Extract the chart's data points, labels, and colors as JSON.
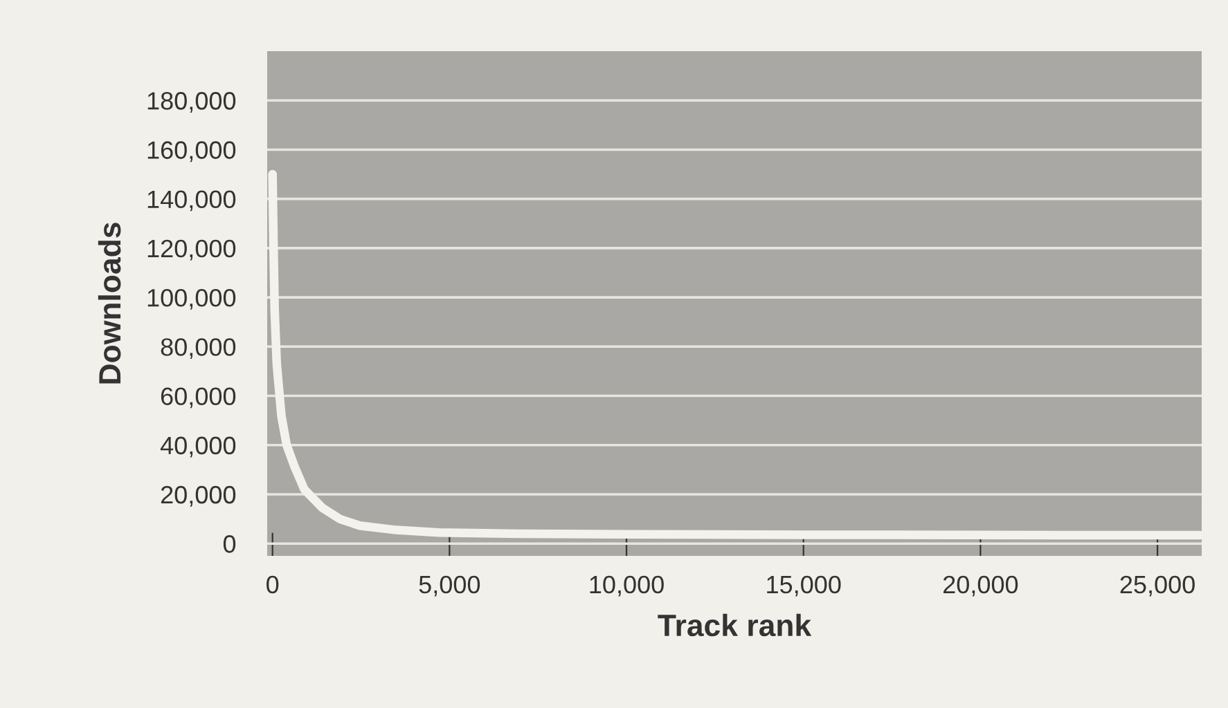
{
  "chart_data": {
    "type": "line",
    "xlabel": "Track rank",
    "ylabel": "Downloads",
    "x": [
      0,
      30,
      60,
      120,
      250,
      400,
      630,
      900,
      1400,
      1900,
      2460,
      3500,
      4700,
      7000,
      10000,
      15000,
      20000,
      25000,
      26200
    ],
    "series": [
      {
        "color": "#f4f2ec",
        "values": [
          150000,
          120000,
          95000,
          73000,
          52000,
          40000,
          31000,
          22000,
          14600,
          10000,
          7300,
          5500,
          4500,
          4000,
          3800,
          3600,
          3500,
          3400,
          3400
        ]
      }
    ],
    "xlim": [
      -150,
      26250
    ],
    "ylim": [
      -5000,
      200000
    ],
    "xticks": [
      {
        "value": 0,
        "label": "0"
      },
      {
        "value": 5000,
        "label": "5,000"
      },
      {
        "value": 10000,
        "label": "10,000"
      },
      {
        "value": 15000,
        "label": "15,000"
      },
      {
        "value": 20000,
        "label": "20,000"
      },
      {
        "value": 25000,
        "label": "25,000"
      }
    ],
    "yticks": [
      {
        "value": 0,
        "label": "0"
      },
      {
        "value": 20000,
        "label": "20,000"
      },
      {
        "value": 40000,
        "label": "40,000"
      },
      {
        "value": 60000,
        "label": "60,000"
      },
      {
        "value": 80000,
        "label": "80,000"
      },
      {
        "value": 100000,
        "label": "100,000"
      },
      {
        "value": 120000,
        "label": "120,000"
      },
      {
        "value": 140000,
        "label": "140,000"
      },
      {
        "value": 160000,
        "label": "160,000"
      },
      {
        "value": 180000,
        "label": "180,000"
      }
    ],
    "grid": "y",
    "marker": "none",
    "line_style": "solid"
  }
}
